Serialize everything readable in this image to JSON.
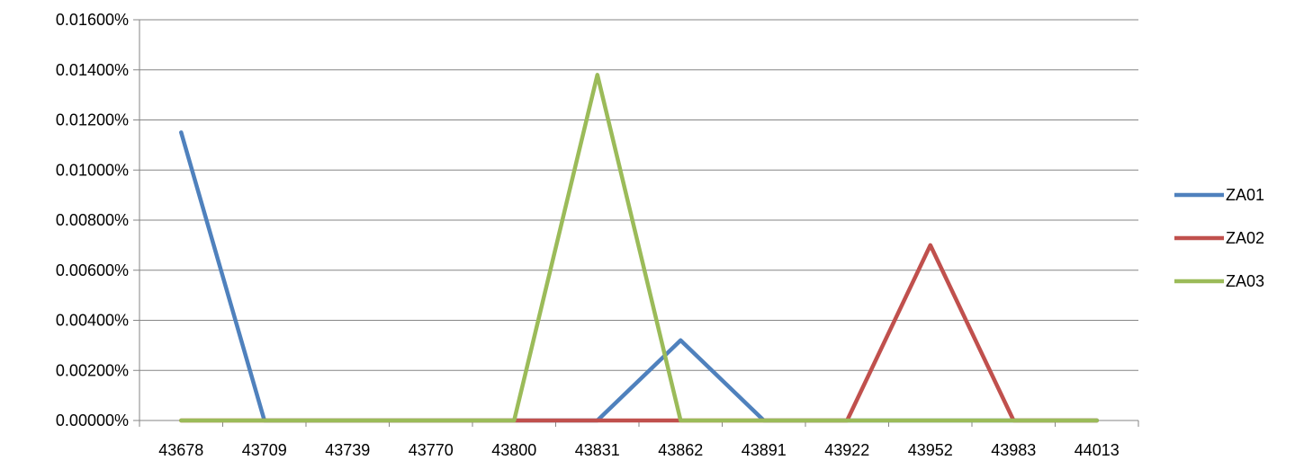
{
  "chart_data": {
    "type": "line",
    "categories": [
      "43678",
      "43709",
      "43739",
      "43770",
      "43800",
      "43831",
      "43862",
      "43891",
      "43922",
      "43952",
      "43983",
      "44013"
    ],
    "series": [
      {
        "name": "ZA01",
        "color": "#4F81BD",
        "values": [
          0.0115,
          0,
          0,
          0,
          0,
          0,
          0.0032,
          0,
          0,
          0,
          0,
          0
        ]
      },
      {
        "name": "ZA02",
        "color": "#C0504D",
        "values": [
          0,
          0,
          0,
          0,
          0,
          0,
          0,
          0,
          0,
          0.007,
          0,
          0
        ]
      },
      {
        "name": "ZA03",
        "color": "#9BBB59",
        "values": [
          0,
          0,
          0,
          0,
          0,
          0.0138,
          0,
          0,
          0,
          0,
          0,
          0
        ]
      }
    ],
    "yticks": [
      "0.00000%",
      "0.00200%",
      "0.00400%",
      "0.00600%",
      "0.00800%",
      "0.01000%",
      "0.01200%",
      "0.01400%",
      "0.01600%"
    ],
    "ylim": [
      0,
      0.016
    ],
    "grid": true,
    "legend": "right"
  }
}
